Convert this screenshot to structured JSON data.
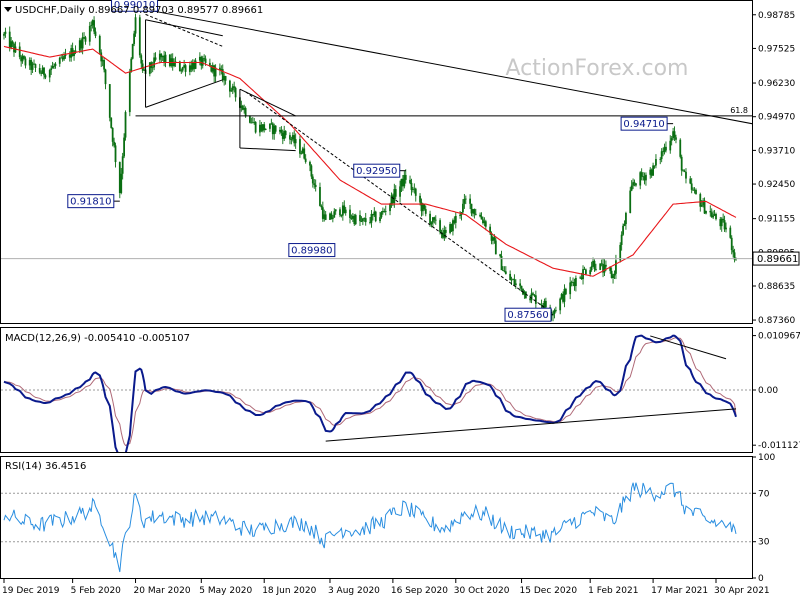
{
  "watermark": "ActionForex.com",
  "colors": {
    "price": "#0a6e12",
    "sma": "#e8161a",
    "macd": "#0a1a8c",
    "signal": "#b06a78",
    "rsi": "#2a8ee0",
    "trend": "#000000",
    "annotation_text": "#0a1a8c",
    "grid_dotted": "#9a9a9a",
    "watermark": "#c8c8c8"
  },
  "price_panel": {
    "header": "USDCHF,Daily  0.89667 0.89703 0.89577 0.89661",
    "yticks": [
      "0.98785",
      "0.97525",
      "0.96230",
      "0.94970",
      "0.93710",
      "0.92450",
      "0.91155",
      "0.89895",
      "0.88635",
      "0.87360"
    ],
    "fib_label": "61.8",
    "current_price": "0.89661",
    "annotations": [
      "0.99010",
      "0.91810",
      "0.89980",
      "0.92950",
      "0.87560",
      "0.94710"
    ]
  },
  "macd_panel": {
    "header": "MACD(12,26,9) -0.005410 -0.005107",
    "yticks": [
      "0.010967",
      "0.00",
      "-0.011127"
    ]
  },
  "rsi_panel": {
    "header": "RSI(14) 36.4516",
    "yticks": [
      "100",
      "70",
      "30",
      "0"
    ]
  },
  "x_labels": [
    "19 Dec 2019",
    "5 Feb 2020",
    "20 Mar 2020",
    "5 May 2020",
    "18 Jun 2020",
    "3 Aug 2020",
    "16 Sep 2020",
    "30 Oct 2020",
    "15 Dec 2020",
    "1 Feb 2021",
    "17 Mar 2021",
    "30 Apr 2021"
  ],
  "chart_data": [
    {
      "type": "candlestick",
      "title": "USDCHF,Daily",
      "ohlc_last": {
        "open": 0.89667,
        "high": 0.89703,
        "low": 0.89577,
        "close": 0.89661
      },
      "ylim": [
        0.8725,
        0.993
      ],
      "key_levels": [
        {
          "label": "0.99010",
          "value": 0.9901,
          "date": "2020-03-20"
        },
        {
          "label": "0.91810",
          "value": 0.9181,
          "date": "2020-03-09"
        },
        {
          "label": "0.89980",
          "value": 0.8998,
          "date": "2020-08-05"
        },
        {
          "label": "0.92950",
          "value": 0.9295,
          "date": "2020-09-25"
        },
        {
          "label": "0.87560",
          "value": 0.8756,
          "date": "2021-01-06"
        },
        {
          "label": "0.94710",
          "value": 0.9471,
          "date": "2021-03-31"
        }
      ],
      "close_path": [
        [
          "2019-12-19",
          0.98
        ],
        [
          "2020-01-02",
          0.97
        ],
        [
          "2020-01-15",
          0.966
        ],
        [
          "2020-01-28",
          0.97
        ],
        [
          "2020-02-12",
          0.978
        ],
        [
          "2020-02-19",
          0.985
        ],
        [
          "2020-02-26",
          0.97
        ],
        [
          "2020-03-09",
          0.922
        ],
        [
          "2020-03-13",
          0.95
        ],
        [
          "2020-03-20",
          0.986
        ],
        [
          "2020-03-25",
          0.965
        ],
        [
          "2020-04-06",
          0.972
        ],
        [
          "2020-04-20",
          0.968
        ],
        [
          "2020-05-05",
          0.97
        ],
        [
          "2020-05-20",
          0.965
        ],
        [
          "2020-06-01",
          0.955
        ],
        [
          "2020-06-12",
          0.946
        ],
        [
          "2020-06-26",
          0.945
        ],
        [
          "2020-07-06",
          0.942
        ],
        [
          "2020-07-17",
          0.935
        ],
        [
          "2020-07-31",
          0.91
        ],
        [
          "2020-08-10",
          0.915
        ],
        [
          "2020-08-25",
          0.91
        ],
        [
          "2020-09-08",
          0.913
        ],
        [
          "2020-09-25",
          0.927
        ],
        [
          "2020-10-09",
          0.913
        ],
        [
          "2020-10-23",
          0.905
        ],
        [
          "2020-11-06",
          0.918
        ],
        [
          "2020-11-20",
          0.91
        ],
        [
          "2020-12-04",
          0.89
        ],
        [
          "2020-12-18",
          0.884
        ],
        [
          "2021-01-06",
          0.877
        ],
        [
          "2021-01-20",
          0.888
        ],
        [
          "2021-02-03",
          0.895
        ],
        [
          "2021-02-17",
          0.89
        ],
        [
          "2021-03-03",
          0.925
        ],
        [
          "2021-03-17",
          0.93
        ],
        [
          "2021-03-31",
          0.944
        ],
        [
          "2021-04-09",
          0.925
        ],
        [
          "2021-04-23",
          0.915
        ],
        [
          "2021-05-07",
          0.908
        ],
        [
          "2021-05-14",
          0.8966
        ]
      ],
      "sma_path": [
        [
          "2019-12-19",
          0.976
        ],
        [
          "2020-01-20",
          0.972
        ],
        [
          "2020-02-19",
          0.975
        ],
        [
          "2020-03-13",
          0.966
        ],
        [
          "2020-04-06",
          0.97
        ],
        [
          "2020-05-05",
          0.97
        ],
        [
          "2020-06-01",
          0.964
        ],
        [
          "2020-07-06",
          0.947
        ],
        [
          "2020-08-10",
          0.926
        ],
        [
          "2020-09-08",
          0.917
        ],
        [
          "2020-10-09",
          0.917
        ],
        [
          "2020-11-06",
          0.913
        ],
        [
          "2020-12-04",
          0.902
        ],
        [
          "2021-01-06",
          0.893
        ],
        [
          "2021-02-03",
          0.89
        ],
        [
          "2021-03-03",
          0.898
        ],
        [
          "2021-03-31",
          0.917
        ],
        [
          "2021-04-23",
          0.918
        ],
        [
          "2021-05-14",
          0.912
        ]
      ]
    },
    {
      "type": "line",
      "title": "MACD(12,26,9)",
      "macd_last": -0.00541,
      "signal_last": -0.005107,
      "ylim": [
        -0.0125,
        0.0125
      ]
    },
    {
      "type": "line",
      "title": "RSI(14)",
      "rsi_last": 36.4516,
      "ylim": [
        0,
        100
      ],
      "levels": [
        30,
        70
      ]
    }
  ]
}
